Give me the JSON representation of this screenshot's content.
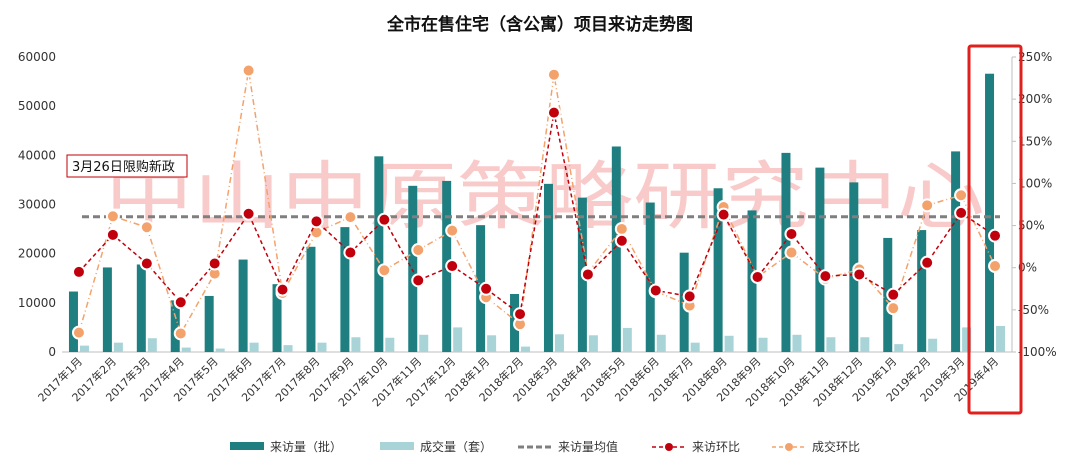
{
  "chart_data": {
    "type": "bar",
    "title": "全市在售住宅（含公寓）项目来访走势图",
    "categories": [
      "2017年1月",
      "2017年2月",
      "2017年3月",
      "2017年4月",
      "2017年5月",
      "2017年6月",
      "2017年7月",
      "2017年8月",
      "2017年9月",
      "2017年10月",
      "2017年11月",
      "2017年12月",
      "2018年1月",
      "2018年2月",
      "2018年3月",
      "2018年4月",
      "2018年5月",
      "2018年6月",
      "2018年7月",
      "2018年8月",
      "2018年9月",
      "2018年10月",
      "2018年11月",
      "2018年12月",
      "2019年1月",
      "2019年2月",
      "2019年3月",
      "2019年4月"
    ],
    "left_axis": {
      "min": 0,
      "max": 60000,
      "ticks": [
        "0",
        "10000",
        "20000",
        "30000",
        "40000",
        "50000",
        "60000"
      ]
    },
    "right_axis": {
      "min": -100,
      "max": 250,
      "ticks": [
        "-100%",
        "-50%",
        "0%",
        "50%",
        "100%",
        "150%",
        "200%",
        "250%"
      ]
    },
    "series": [
      {
        "name": "来访量（批）",
        "kind": "bar",
        "axis": "left",
        "color": "#1f7f80",
        "values": [
          12300,
          17200,
          17800,
          10500,
          11400,
          18800,
          13800,
          21400,
          25400,
          39800,
          33800,
          34800,
          25800,
          11800,
          34200,
          31400,
          41800,
          30400,
          20200,
          33300,
          28800,
          40500,
          37500,
          34500,
          23200,
          24800,
          40800,
          56600
        ]
      },
      {
        "name": "成交量（套）",
        "kind": "bar",
        "axis": "left",
        "color": "#a8d4d8",
        "values": [
          1300,
          1900,
          2800,
          900,
          700,
          1900,
          1400,
          1900,
          3000,
          2900,
          3500,
          5000,
          3400,
          1100,
          3600,
          3400,
          4900,
          3500,
          1900,
          3300,
          2900,
          3500,
          3000,
          3000,
          1600,
          2700,
          5000,
          5300
        ]
      },
      {
        "name": "来访量均值",
        "kind": "hline",
        "axis": "left",
        "color": "#7f7f7f",
        "value": 27500
      },
      {
        "name": "来访环比",
        "kind": "line",
        "axis": "right",
        "color": "#c0000c",
        "values": [
          -5,
          39,
          5,
          -41,
          5,
          64,
          -26,
          55,
          18,
          57,
          -15,
          2,
          -25,
          -55,
          184,
          -8,
          32,
          -27,
          -34,
          63,
          -11,
          40,
          -10,
          -8,
          -32,
          6,
          65,
          38
        ]
      },
      {
        "name": "成交环比",
        "kind": "line",
        "axis": "right",
        "color": "#f4a26c",
        "values": [
          -77,
          61,
          48,
          -78,
          -7,
          234,
          -30,
          42,
          60,
          -3,
          21,
          44,
          -35,
          -67,
          229,
          -6,
          46,
          -28,
          -45,
          72,
          -11,
          18,
          -13,
          -2,
          -48,
          74,
          86,
          2
        ]
      }
    ],
    "annotation": "3月26日限购新政",
    "watermark": "中山中原策略研究中心",
    "grid": false,
    "legend_position": "bottom"
  }
}
